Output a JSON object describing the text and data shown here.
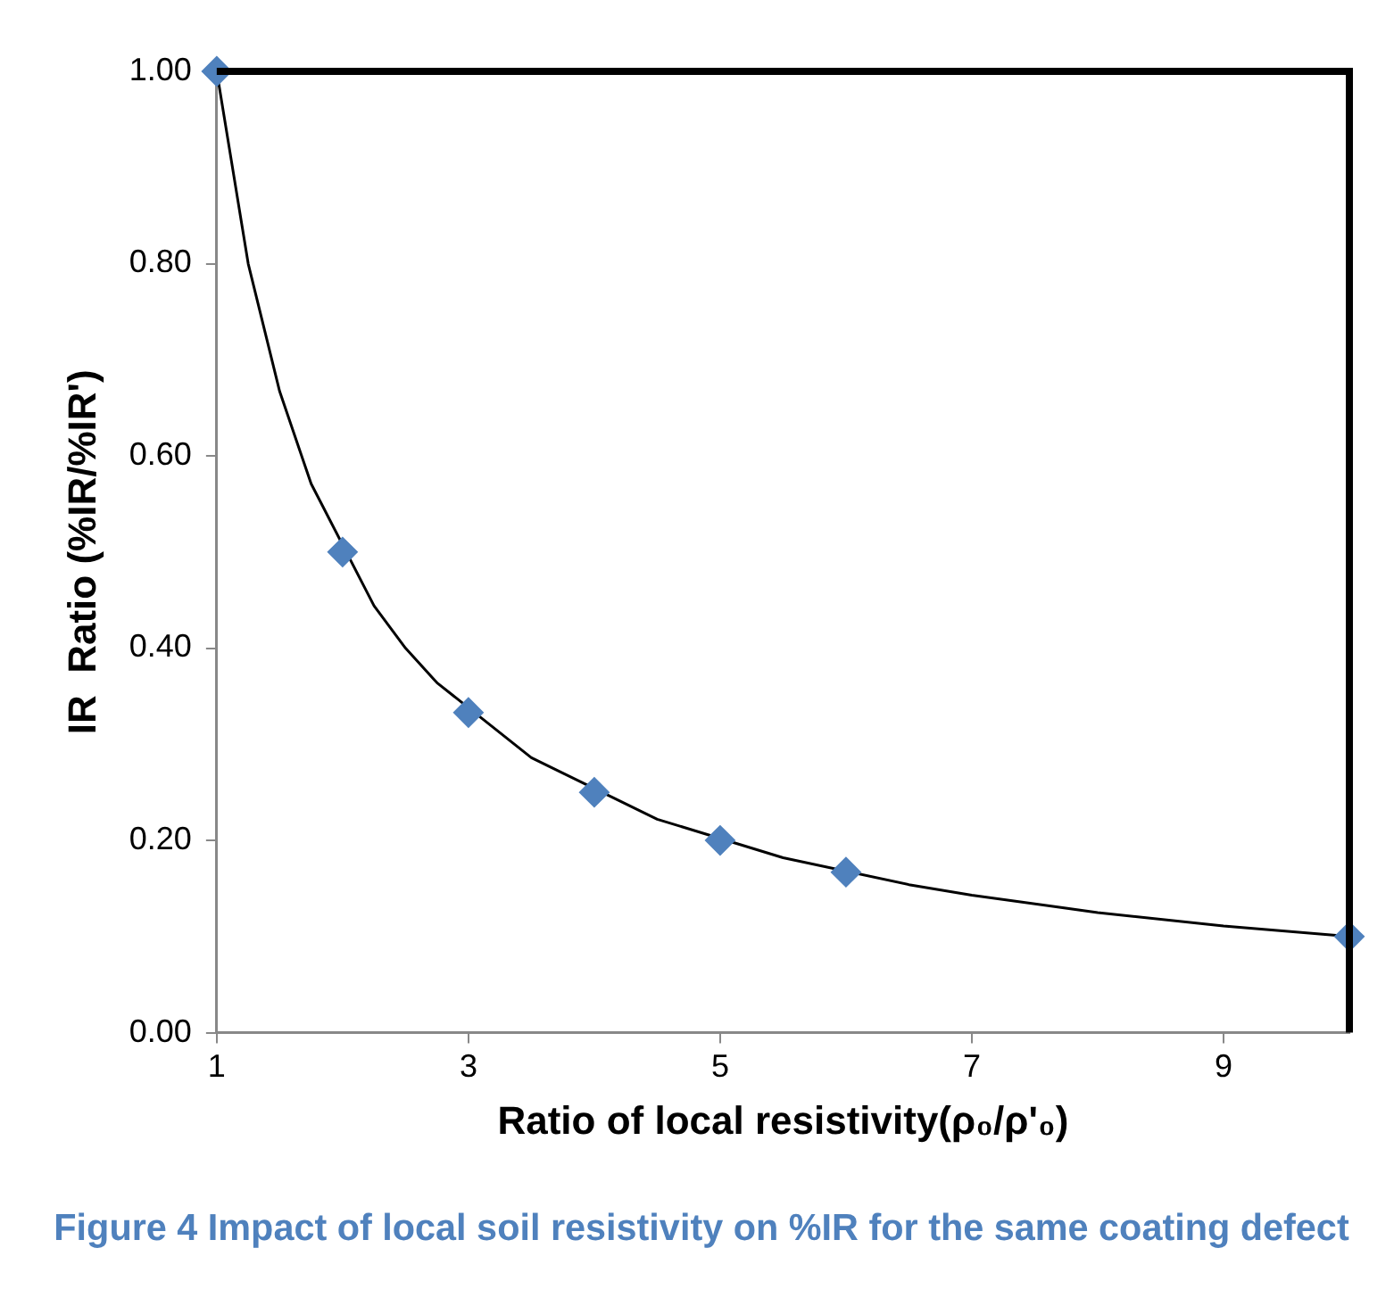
{
  "chart_data": {
    "type": "scatter",
    "title": "Figure 4 Impact of local soil resistivity on %IR for the same coating defect",
    "xlabel": "Ratio of local resistivity(ρ₀/ρ'₀)",
    "ylabel": "IR  Ratio (%IR/%IR')",
    "x": [
      1,
      2,
      3,
      4,
      5,
      6,
      10
    ],
    "series": [
      {
        "color": "#4f81bd",
        "marker": "diamond",
        "values": [
          1,
          0.5,
          0.333,
          0.25,
          0.2,
          0.167,
          0.1
        ]
      },
      {
        "type": "line",
        "color": "#000000",
        "marker": "none",
        "x": [
          1,
          1.25,
          1.5,
          1.75,
          2.25,
          2.5,
          2.75,
          3.5,
          4.5,
          5.5,
          6.5,
          7,
          8,
          9,
          10
        ],
        "values": [
          1,
          0.8,
          0.667,
          0.571,
          0.444,
          0.4,
          0.364,
          0.286,
          0.222,
          0.182,
          0.154,
          0.143,
          0.125,
          0.111,
          0.1
        ]
      }
    ],
    "xlim": [
      1,
      10
    ],
    "xticks": [
      1,
      3,
      5,
      7,
      9
    ],
    "ylim": [
      0,
      1
    ],
    "yticks": [
      {
        "value": 0,
        "label": "0.00"
      },
      {
        "value": 0.2,
        "label": "0.20"
      },
      {
        "value": 0.4,
        "label": "0.40"
      },
      {
        "value": 0.6,
        "label": "0.60"
      },
      {
        "value": 0.8,
        "label": "0.80"
      },
      {
        "value": 1,
        "label": "1.00"
      }
    ],
    "grid": false,
    "legend": false
  }
}
